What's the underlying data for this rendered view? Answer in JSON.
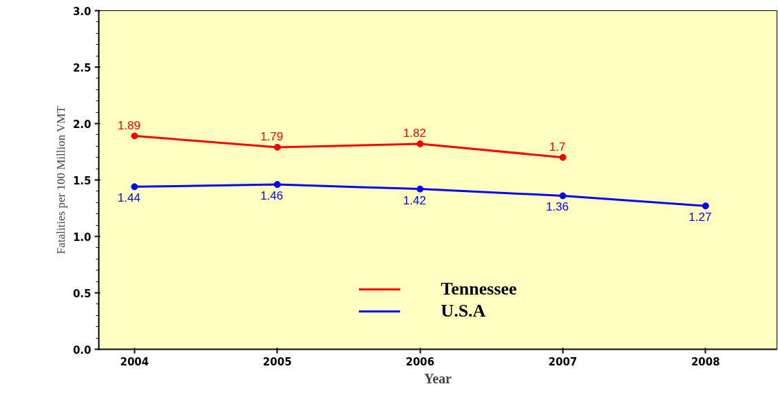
{
  "chart_data": {
    "type": "line",
    "xlabel": "Year",
    "ylabel": "Fatalities per 100 Million VMT",
    "x": [
      2004,
      2005,
      2006,
      2007,
      2008
    ],
    "series": [
      {
        "name": "Tennessee",
        "color": "#ff0000",
        "values": [
          1.89,
          1.79,
          1.82,
          1.7,
          null
        ]
      },
      {
        "name": "U.S.A",
        "color": "#0000ff",
        "values": [
          1.44,
          1.46,
          1.42,
          1.36,
          1.27
        ]
      }
    ],
    "xlim": [
      2003.75,
      2008.5
    ],
    "xticks": [
      2004,
      2005,
      2006,
      2007,
      2008
    ],
    "ylim": [
      0,
      3
    ],
    "yticks": [
      {
        "value": 0,
        "label": "0.0"
      },
      0.5,
      {
        "value": 1,
        "label": "1.0"
      },
      1.5,
      {
        "value": 2,
        "label": "2.0"
      },
      2.5,
      {
        "value": 3,
        "label": "3.0"
      }
    ],
    "grid": false,
    "legend": "bottom",
    "marker": "circle",
    "line_style": "solid",
    "data_labels": true
  }
}
